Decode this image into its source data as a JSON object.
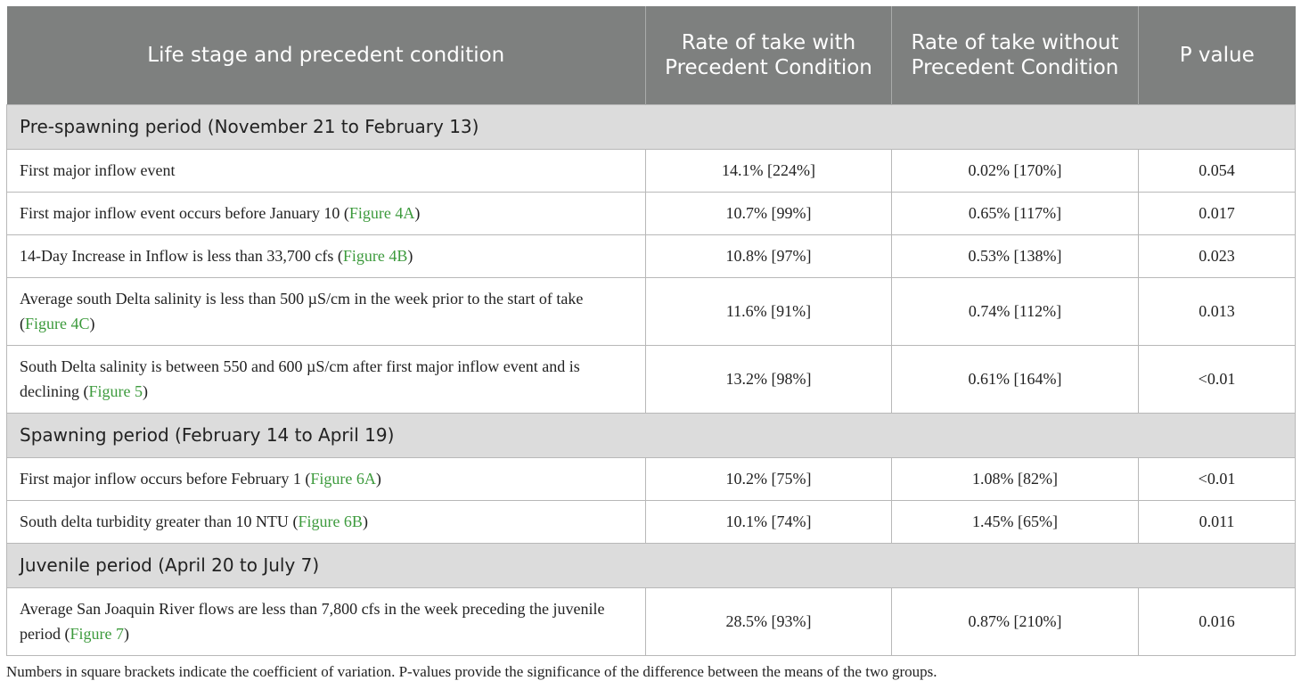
{
  "header": {
    "col1": "Life stage and precedent condition",
    "col2": "Rate of take with Precedent Condition",
    "col3": "Rate of take without Precedent Condition",
    "col4": "P value"
  },
  "sections": [
    {
      "title": "Pre-spawning period (November 21 to February 13)",
      "rows": [
        {
          "condition": "First major inflow event",
          "ref": "",
          "with": "14.1% [224%]",
          "without": "0.02% [170%]",
          "p": "0.054"
        },
        {
          "condition": "First major inflow event occurs before January 10",
          "ref": "Figure 4A",
          "with": "10.7% [99%]",
          "without": "0.65% [117%]",
          "p": "0.017"
        },
        {
          "condition": "14-Day Increase in Inflow is less than 33,700 cfs",
          "ref": "Figure 4B",
          "with": "10.8% [97%]",
          "without": "0.53% [138%]",
          "p": "0.023"
        },
        {
          "condition": "Average south Delta salinity is less than 500 µS/cm in the week prior to the start of take",
          "ref": "Figure 4C",
          "with": "11.6% [91%]",
          "without": "0.74% [112%]",
          "p": "0.013"
        },
        {
          "condition": "South Delta salinity is between 550 and 600 µS/cm after first major inflow event and is declining",
          "ref": "Figure 5",
          "with": "13.2% [98%]",
          "without": "0.61% [164%]",
          "p": "<0.01"
        }
      ]
    },
    {
      "title": "Spawning period (February 14 to April 19)",
      "rows": [
        {
          "condition": "First major inflow occurs before February 1",
          "ref": "Figure 6A",
          "with": "10.2% [75%]",
          "without": "1.08% [82%]",
          "p": "<0.01"
        },
        {
          "condition": "South delta turbidity greater than 10 NTU",
          "ref": "Figure 6B",
          "with": "10.1% [74%]",
          "without": "1.45% [65%]",
          "p": "0.011"
        }
      ]
    },
    {
      "title": "Juvenile period (April 20 to July 7)",
      "rows": [
        {
          "condition": "Average San Joaquin River flows are less than 7,800 cfs in the week preceding the juvenile period",
          "ref": "Figure 7",
          "with": "28.5% [93%]",
          "without": "0.87% [210%]",
          "p": "0.016"
        }
      ]
    }
  ],
  "footnote": "Numbers in square brackets indicate the coefficient of variation. P-values provide the significance of the difference between the means of the two groups."
}
